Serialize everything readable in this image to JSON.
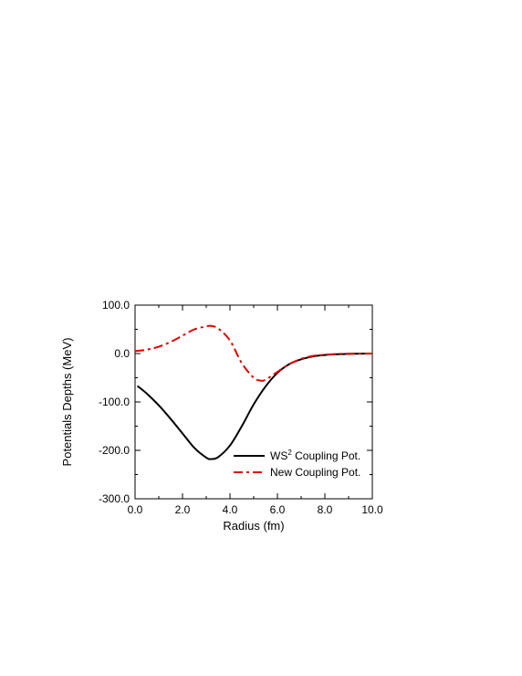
{
  "chart_data": {
    "type": "line",
    "title": "",
    "xlabel": "Radius (fm)",
    "ylabel": "Potentials Depths (MeV)",
    "xlim": [
      0.0,
      10.0
    ],
    "ylim": [
      -300.0,
      100.0
    ],
    "xticks": [
      0.0,
      2.0,
      4.0,
      6.0,
      8.0,
      10.0
    ],
    "xtick_labels": [
      "0.0",
      "2.0",
      "4.0",
      "6.0",
      "8.0",
      "10.0"
    ],
    "yticks": [
      100.0,
      0.0,
      -100.0,
      -200.0,
      -300.0
    ],
    "ytick_labels": [
      "100.0",
      "0.0",
      "-100.0",
      "-200.0",
      "-300.0"
    ],
    "grid": false,
    "legend_position": "bottom-right",
    "series": [
      {
        "name": "WS",
        "name_superscript": "2",
        "name_suffix": " Coupling Pot.",
        "color": "#000000",
        "dash": "solid",
        "x": [
          0.1,
          0.5,
          1.0,
          1.5,
          2.0,
          2.5,
          3.0,
          3.2,
          3.5,
          4.0,
          4.5,
          5.0,
          5.5,
          6.0,
          6.5,
          7.0,
          7.5,
          8.0,
          8.5,
          9.0,
          9.5,
          10.0
        ],
        "y": [
          -67,
          -83,
          -107,
          -135,
          -165,
          -195,
          -215,
          -218,
          -214,
          -190,
          -150,
          -105,
          -68,
          -40,
          -22,
          -12,
          -6,
          -3,
          -1.5,
          -0.8,
          -0.3,
          0
        ]
      },
      {
        "name": "New Coupling Pot.",
        "color": "#e00000",
        "dash": "dashed",
        "x": [
          0.0,
          0.5,
          1.0,
          1.5,
          2.0,
          2.5,
          3.0,
          3.2,
          3.5,
          4.0,
          4.5,
          5.0,
          5.3,
          5.5,
          6.0,
          6.5,
          7.0,
          7.5,
          8.0,
          8.5,
          9.0,
          9.5,
          10.0
        ],
        "y": [
          5,
          8,
          14,
          24,
          37,
          50,
          56,
          57,
          52,
          27,
          -20,
          -50,
          -56,
          -54,
          -38,
          -22,
          -11,
          -5,
          -2.5,
          -1,
          -0.4,
          -0.1,
          0
        ]
      }
    ]
  }
}
